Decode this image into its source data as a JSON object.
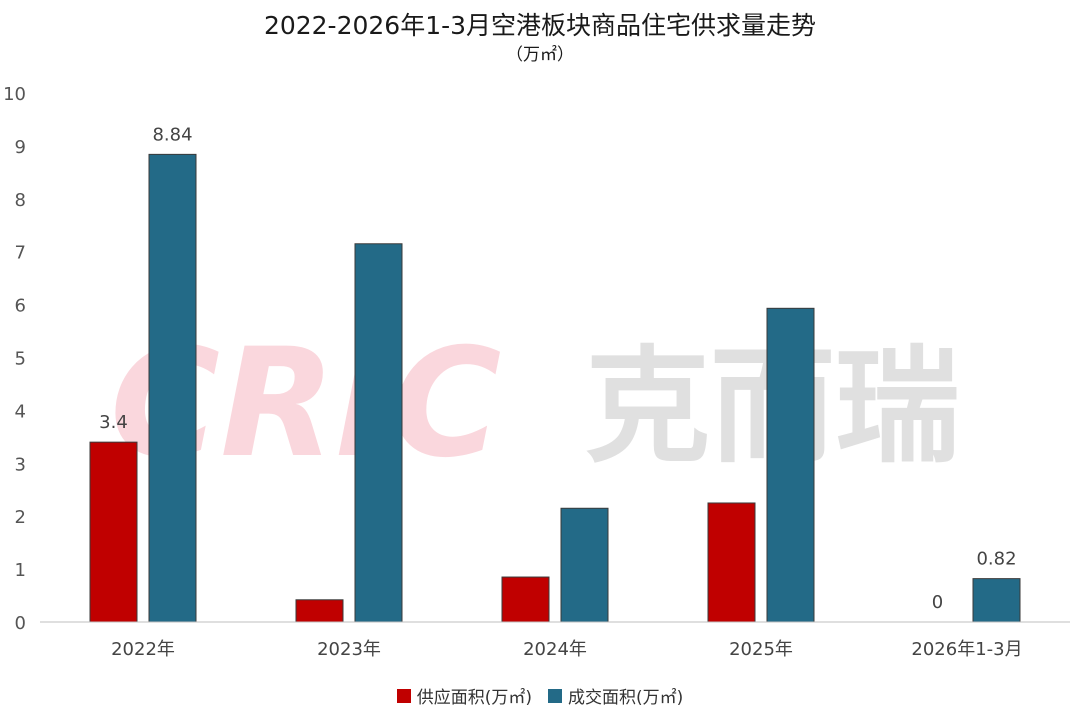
{
  "chart_data": {
    "type": "bar",
    "title": "2022-2026年1-3月空港板块商品住宅供求量走势",
    "subtitle": "（万㎡）",
    "categories": [
      "2022年",
      "2023年",
      "2024年",
      "2025年",
      "2026年1-3月"
    ],
    "series": [
      {
        "name": "供应面积(万㎡)",
        "color": "#c00000",
        "values": [
          3.4,
          0.42,
          0.85,
          2.25,
          0
        ]
      },
      {
        "name": "成交面积(万㎡)",
        "color": "#236a87",
        "values": [
          8.84,
          7.15,
          2.15,
          5.93,
          0.82
        ]
      }
    ],
    "data_labels": [
      {
        "series": 0,
        "index": 0,
        "text": "3.4"
      },
      {
        "series": 1,
        "index": 0,
        "text": "8.84"
      },
      {
        "series": 0,
        "index": 4,
        "text": "0"
      },
      {
        "series": 1,
        "index": 4,
        "text": "0.82"
      }
    ],
    "ylim": [
      0,
      10
    ],
    "yticks": [
      0,
      1,
      2,
      3,
      4,
      5,
      6,
      7,
      8,
      9,
      10
    ],
    "grid": false,
    "legend_position": "bottom"
  },
  "watermark": {
    "latin": "CRIC",
    "chinese": "克而瑞"
  }
}
